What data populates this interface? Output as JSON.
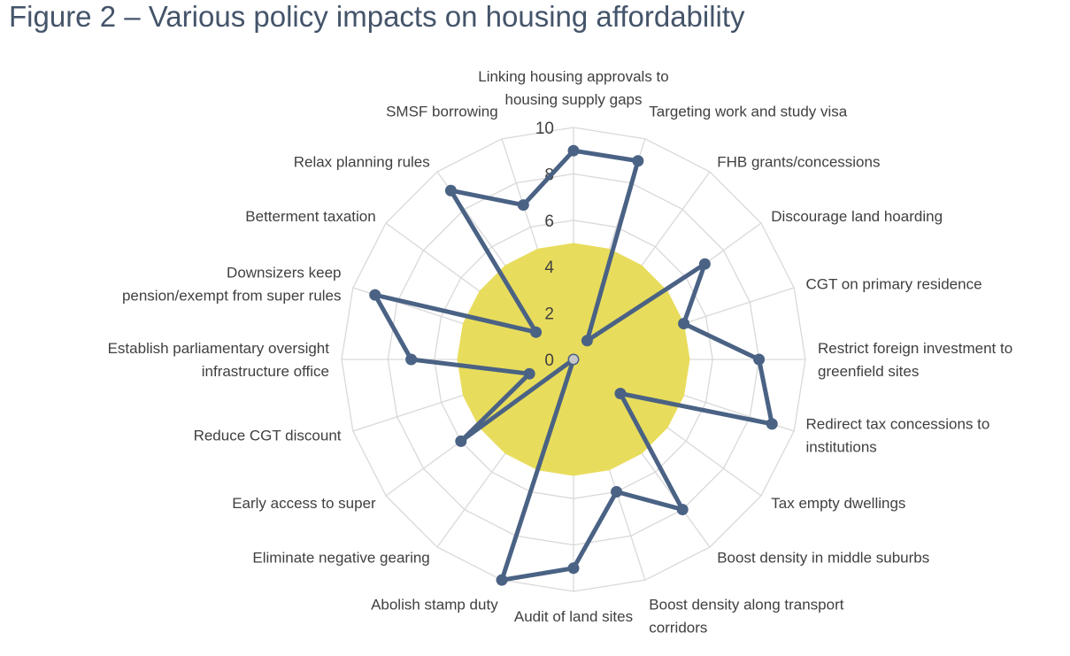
{
  "figure": {
    "title": "Figure 2 – Various policy impacts on housing affordability"
  },
  "chart_data": {
    "type": "radar",
    "categories": [
      "Linking housing approvals to housing supply gaps",
      "Targeting work and study visa",
      "FHB grants/concessions",
      "Discourage land hoarding",
      "CGT on primary residence",
      "Restrict foreign investment to greenfield sites",
      "Redirect tax concessions to institutions",
      "Tax empty dwellings",
      "Boost density in middle suburbs",
      "Boost density along transport corridors",
      "Audit of land sites",
      "Abolish stamp duty",
      "Eliminate negative gearing",
      "Early access to super",
      "Reduce CGT discount",
      "Establish parliamentary oversight infrastructure office",
      "Downsizers keep pension/exempt from super rules",
      "Betterment taxation",
      "Relax planning rules",
      "SMSF borrowing"
    ],
    "category_lines": [
      [
        "Linking housing approvals to",
        "housing supply gaps"
      ],
      [
        "Targeting work and study visa"
      ],
      [
        "FHB grants/concessions"
      ],
      [
        "Discourage land hoarding"
      ],
      [
        "CGT on primary residence"
      ],
      [
        "Restrict foreign investment to",
        "greenfield sites"
      ],
      [
        "Redirect tax concessions to",
        "institutions"
      ],
      [
        "Tax empty dwellings"
      ],
      [
        "Boost density in middle suburbs"
      ],
      [
        "Boost density along transport",
        "corridors"
      ],
      [
        "Audit of land sites"
      ],
      [
        "Abolish stamp duty"
      ],
      [
        "Eliminate negative gearing"
      ],
      [
        "Early access to super"
      ],
      [
        "Reduce CGT discount"
      ],
      [
        "Establish parliamentary oversight",
        "infrastructure office"
      ],
      [
        "Downsizers keep",
        "pension/exempt from super rules"
      ],
      [
        "Betterment taxation"
      ],
      [
        "Relax planning rules"
      ],
      [
        "SMSF borrowing"
      ]
    ],
    "series": [
      {
        "values": [
          9,
          9,
          1,
          7,
          5,
          8,
          9,
          2.5,
          8,
          6,
          9,
          10,
          0,
          6,
          2,
          7,
          9,
          2,
          9,
          7
        ],
        "color": "#4a6284"
      },
      {
        "values": [
          5,
          5,
          5,
          5,
          5,
          5,
          5,
          5,
          5,
          5,
          5,
          5,
          5,
          5,
          5,
          5,
          5,
          5,
          5,
          5
        ],
        "color": "#e8dc5c",
        "fill": true
      }
    ],
    "r_ticks": [
      "0",
      "2",
      "4",
      "6",
      "8",
      "10"
    ],
    "rlim": [
      0,
      10
    ],
    "grid": true,
    "legend": false
  }
}
